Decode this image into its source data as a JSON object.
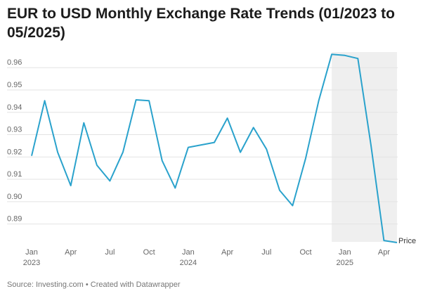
{
  "header": {
    "title": "EUR to USD Monthly Exchange Rate Trends (01/2023 to 05/2025)"
  },
  "footer": {
    "source": "Source: Investing.com • Created with Datawrapper"
  },
  "colors": {
    "line": "#2aa2cc",
    "grid": "#e3e3e3",
    "highlight": "#efefef"
  },
  "chart_data": {
    "type": "line",
    "x_start": "2023-01",
    "x_end": "2025-05",
    "yticks": [
      0.89,
      0.9,
      0.91,
      0.92,
      0.93,
      0.94,
      0.95,
      0.96
    ],
    "ytick_labels": [
      "0.89",
      "0.90",
      "0.91",
      "0.92",
      "0.93",
      "0.94",
      "0.95",
      "0.96"
    ],
    "ylim": [
      0.882,
      0.967
    ],
    "xticks": [
      {
        "month": "2023-01",
        "label": "Jan",
        "sublabel": "2023"
      },
      {
        "month": "2023-04",
        "label": "Apr",
        "sublabel": ""
      },
      {
        "month": "2023-07",
        "label": "Jul",
        "sublabel": ""
      },
      {
        "month": "2023-10",
        "label": "Oct",
        "sublabel": ""
      },
      {
        "month": "2024-01",
        "label": "Jan",
        "sublabel": "2024"
      },
      {
        "month": "2024-04",
        "label": "Apr",
        "sublabel": ""
      },
      {
        "month": "2024-07",
        "label": "Jul",
        "sublabel": ""
      },
      {
        "month": "2024-10",
        "label": "Oct",
        "sublabel": ""
      },
      {
        "month": "2025-01",
        "label": "Jan",
        "sublabel": "2025"
      },
      {
        "month": "2025-04",
        "label": "Apr",
        "sublabel": ""
      }
    ],
    "highlight_range": [
      "2024-12",
      "2025-05"
    ],
    "grid": true,
    "series": [
      {
        "name": "Price",
        "x": [
          "2023-01",
          "2023-02",
          "2023-03",
          "2023-04",
          "2023-05",
          "2023-06",
          "2023-07",
          "2023-08",
          "2023-09",
          "2023-10",
          "2023-11",
          "2023-12",
          "2024-01",
          "2024-02",
          "2024-03",
          "2024-04",
          "2024-05",
          "2024-06",
          "2024-07",
          "2024-08",
          "2024-09",
          "2024-10",
          "2024-11",
          "2024-12",
          "2025-01",
          "2025-02",
          "2025-03",
          "2025-04",
          "2025-05"
        ],
        "values": [
          0.9205,
          0.9452,
          0.9221,
          0.9072,
          0.9353,
          0.9163,
          0.9093,
          0.9222,
          0.9456,
          0.9452,
          0.9184,
          0.9061,
          0.9243,
          0.9254,
          0.9265,
          0.9374,
          0.9221,
          0.9332,
          0.9235,
          0.9051,
          0.8982,
          0.9194,
          0.9452,
          0.966,
          0.9655,
          0.9641,
          0.9254,
          0.8826,
          0.8817
        ]
      }
    ]
  }
}
